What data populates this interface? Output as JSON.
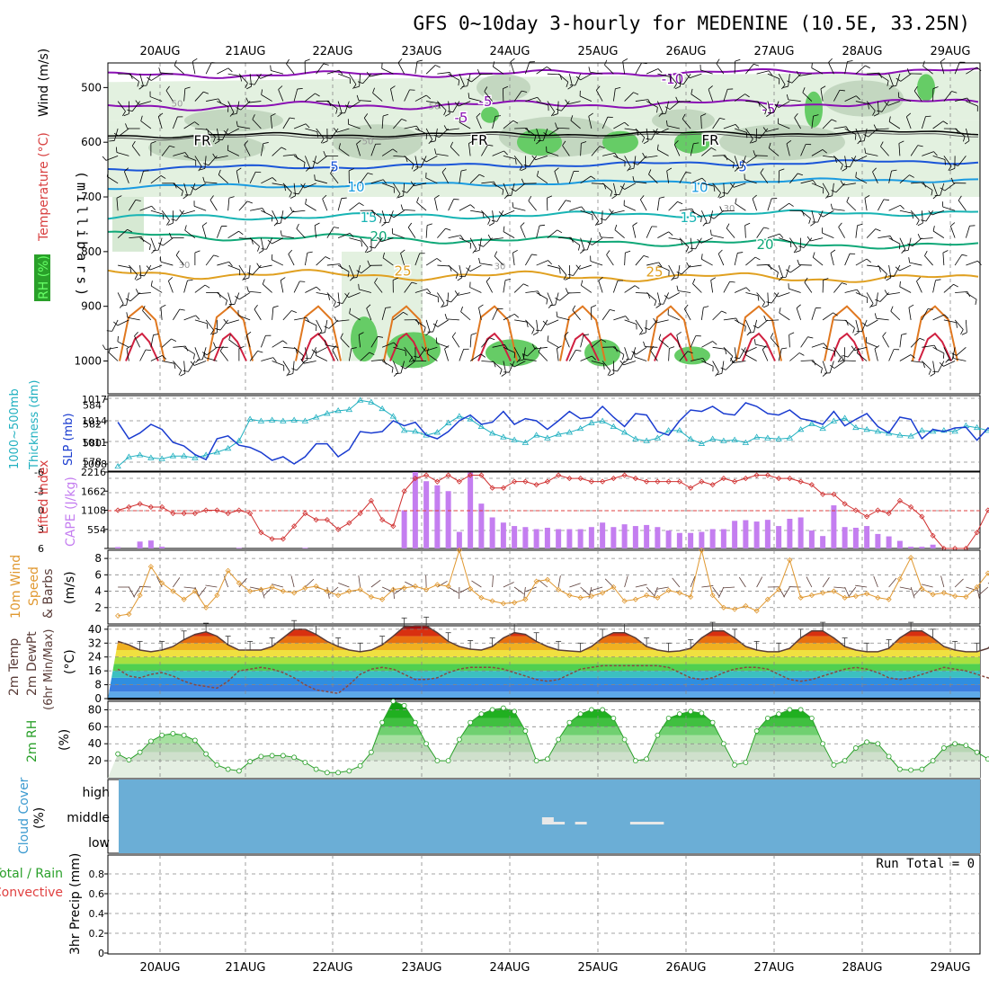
{
  "title": "GFS 0~10day 3-hourly for MEDENINE (10.5E, 33.25N)",
  "date_labels": [
    "20AUG",
    "21AUG",
    "22AUG",
    "23AUG",
    "24AUG",
    "25AUG",
    "26AUG",
    "27AUG",
    "28AUG",
    "29AUG"
  ],
  "panels": {
    "upper": {
      "ylabel": "(millibars)",
      "ylabel_wind": "Wind (m/s)",
      "ylabel_temp": "Temperature (°C)",
      "ylabel_rh": "RH (%)",
      "yticks": [
        "500",
        "600",
        "700",
        "800",
        "900",
        "1000"
      ],
      "isotherm_labels": [
        {
          "text": "-10",
          "color": "#8a10b4"
        },
        {
          "text": "-5",
          "color": "#8a10b4"
        },
        {
          "text": "-5",
          "color": "#8a10b4"
        },
        {
          "text": "-5",
          "color": "#8a10b4"
        },
        {
          "text": "FR",
          "color": "#000000"
        },
        {
          "text": "FR",
          "color": "#000000"
        },
        {
          "text": "FR",
          "color": "#000000"
        },
        {
          "text": "5",
          "color": "#1a55d8"
        },
        {
          "text": "5",
          "color": "#1a55d8"
        },
        {
          "text": "10",
          "color": "#1a9be0"
        },
        {
          "text": "10",
          "color": "#1a9be0"
        },
        {
          "text": "15",
          "color": "#18b4b4"
        },
        {
          "text": "15",
          "color": "#18b4b4"
        },
        {
          "text": "20",
          "color": "#10a878"
        },
        {
          "text": "20",
          "color": "#10a878"
        },
        {
          "text": "25",
          "color": "#e0a020"
        },
        {
          "text": "25",
          "color": "#e0a020"
        }
      ],
      "rh_labels": [
        "50",
        "50",
        "50",
        "30",
        "30",
        "30"
      ]
    },
    "slp": {
      "ylabel_left": "Thickness (dm)",
      "ylabel_left2": "1000~500mb",
      "ylabel_right": "SLP (mb)",
      "yticks_left": [
        "584",
        "582",
        "580",
        "578"
      ],
      "yticks_right": [
        "1017",
        "1014",
        "1011",
        "1008"
      ]
    },
    "cape": {
      "ylabel_left": "Lifted Index",
      "ylabel_right": "CAPE (J/kg)",
      "yticks_left": [
        "-6",
        "-3",
        "0",
        "3",
        "6"
      ],
      "yticks_right": [
        "2216",
        "1662",
        "1108",
        "554"
      ]
    },
    "wind10m": {
      "ylabel1": "10m Wind",
      "ylabel2": "Speed",
      "ylabel3": "& Barbs",
      "ylabel_unit": "(m/s)",
      "yticks": [
        "8",
        "6",
        "4",
        "2"
      ]
    },
    "temp2m": {
      "ylabel1": "2m Temp",
      "ylabel2": "2m DewPt",
      "ylabel3": "(6hr Min/Max)",
      "ylabel_unit": "(°C)",
      "yticks": [
        "40",
        "32",
        "24",
        "16",
        "8",
        "0"
      ]
    },
    "rh2m": {
      "ylabel1": "2m RH",
      "ylabel_unit": "(%)",
      "yticks": [
        "80",
        "60",
        "40",
        "20"
      ]
    },
    "cloud": {
      "ylabel1": "Cloud Cover",
      "ylabel_unit": "(%)",
      "levels": [
        "high",
        "middle",
        "low"
      ]
    },
    "precip": {
      "ylabel1": "3hr Precip (mm)",
      "ylabel2": "Total / Rain",
      "ylabel3": "Convective",
      "yticks": [
        "0.8",
        "0.6",
        "0.4",
        "0.2",
        "0"
      ],
      "run_total": "Run Total = 0"
    }
  },
  "colors": {
    "slp": "#1a3cd0",
    "thickness": "#20b0c0",
    "cape": "#c47ef0",
    "lifted": "#d03030",
    "wind": "#e09830",
    "temp": "#5a3c38",
    "dewpt": "#8a4a40",
    "rh": "#2aa02a",
    "cloud": "#6baed6"
  },
  "chart_data": [
    {
      "type": "line",
      "title": "Sea Level Pressure & 1000~500mb Thickness",
      "x_range": [
        "19 AUG 12Z",
        "29 AUG 06Z"
      ],
      "x_step_hours": 3,
      "series": [
        {
          "name": "SLP (mb)",
          "axis": "right",
          "values": [
            1013.8,
            1011.5,
            1012.3,
            1013.5,
            1012.8,
            1011,
            1010.5,
            1009.3,
            1008.6,
            1011.5,
            1011.9,
            1010.6,
            1010.3,
            1009.6,
            1008.5,
            1009,
            1008,
            1009,
            1010.8,
            1010.8,
            1009,
            1010,
            1012.5,
            1012.3,
            1012.5,
            1014,
            1013.3,
            1013.8,
            1012,
            1011.5,
            1012.5,
            1014,
            1014.8,
            1013.5,
            1013.8,
            1015.3,
            1013.5,
            1014.3,
            1014,
            1012.8,
            1014,
            1015.3,
            1014.3,
            1014.5,
            1016,
            1014.5,
            1013.2,
            1015,
            1014.8,
            1012.5,
            1012,
            1014,
            1015.5,
            1015.3,
            1016,
            1015,
            1014.8,
            1016.5,
            1016,
            1015,
            1014.8,
            1015.5,
            1014.3,
            1014,
            1013.5,
            1015.3,
            1013.3,
            1014.2,
            1015,
            1013.2,
            1012.3,
            1014.5,
            1014.2,
            1011.5,
            1012.8,
            1012.5,
            1013,
            1013.1,
            1011.3,
            1013,
            1012.5,
            1010.5,
            1011,
            1012.8,
            1013.5,
            1012.3,
            1013.3
          ]
        },
        {
          "name": "Thickness (dm)",
          "axis": "left",
          "values": [
            577.5,
            578.5,
            578.7,
            578.4,
            578.3,
            578.6,
            578.6,
            578.4,
            578.7,
            579,
            579.4,
            580.2,
            582.5,
            582.3,
            582.4,
            582.3,
            582.4,
            582.3,
            582.7,
            583.1,
            583.4,
            583.5,
            584.5,
            584.3,
            583.6,
            582.8,
            581.3,
            581.2,
            580.8,
            581.1,
            582.1,
            582.8,
            582.5,
            581.7,
            581,
            580.6,
            580.3,
            580,
            580.8,
            580.5,
            580.9,
            581.1,
            581.5,
            582.1,
            582.3,
            581.7,
            581.1,
            580.4,
            580.2,
            580.5,
            581.3,
            581.3,
            580.4,
            579.9,
            580.4,
            580.2,
            580.3,
            580,
            580.6,
            580.5,
            580.4,
            580.5,
            581.4,
            582,
            581.5,
            582.3,
            582.6,
            581.6,
            581.4,
            581.2,
            581,
            580.8,
            580.7,
            581.3,
            581.2,
            581.3,
            581.2,
            581.8,
            581.6,
            581.3,
            581.4,
            582.4,
            582.1,
            581.5,
            581.3,
            581.4,
            581.3
          ]
        }
      ],
      "ylim_left": [
        577,
        585
      ],
      "ylim_right": [
        1007,
        1017.5
      ]
    },
    {
      "type": "bar",
      "title": "CAPE & Lifted Index",
      "x_step_hours": 3,
      "series": [
        {
          "name": "CAPE (J/kg)",
          "axis": "right",
          "values": [
            40,
            0,
            200,
            230,
            50,
            0,
            0,
            0,
            0,
            0,
            0,
            20,
            0,
            0,
            0,
            0,
            0,
            20,
            0,
            0,
            0,
            0,
            0,
            0,
            0,
            0,
            1108,
            2216,
            1950,
            1830,
            1662,
            480,
            2200,
            1300,
            900,
            750,
            650,
            620,
            560,
            600,
            560,
            560,
            560,
            620,
            750,
            620,
            700,
            650,
            680,
            620,
            520,
            450,
            450,
            480,
            560,
            560,
            800,
            820,
            780,
            830,
            650,
            860,
            900,
            520,
            360,
            1250,
            620,
            600,
            650,
            420,
            350,
            220,
            50,
            50,
            110,
            0,
            0,
            0,
            0,
            0,
            0,
            0,
            0,
            0,
            0,
            0,
            0
          ]
        },
        {
          "name": "Lifted Index",
          "axis": "left",
          "values": [
            0,
            -0.5,
            -1,
            -0.5,
            -0.5,
            0.5,
            0.5,
            0.5,
            0,
            0,
            0.5,
            0,
            0.5,
            3.5,
            4.5,
            4.5,
            2.5,
            0.5,
            1.5,
            1.5,
            3,
            2,
            0.5,
            -1.5,
            1.5,
            2.5,
            -3,
            -5,
            -5.5,
            -4.5,
            -5.5,
            -4.5,
            -5.5,
            -5.5,
            -3.5,
            -3.5,
            -4.5,
            -4.5,
            -4,
            -4.5,
            -5.5,
            -5,
            -5,
            -4.5,
            -4.5,
            -5,
            -5.5,
            -5,
            -4.5,
            -4.5,
            -4.5,
            -4.5,
            -3.5,
            -4.5,
            -4,
            -5,
            -4.5,
            -5,
            -5.5,
            -5.5,
            -5,
            -5,
            -4.5,
            -4,
            -2.5,
            -2.5,
            -1,
            0,
            1,
            0,
            0.5,
            -1.5,
            -0.5,
            1,
            4,
            6,
            6,
            6,
            3.5,
            0,
            0,
            1.5,
            3,
            1.5,
            0.5,
            -0.5,
            -1
          ]
        }
      ],
      "ylim_left": [
        6,
        -6
      ],
      "ylim_right": [
        0,
        2216
      ]
    },
    {
      "type": "line",
      "title": "10m Wind Speed",
      "ylabel": "(m/s)",
      "values": [
        1,
        1.2,
        3.5,
        7,
        5,
        4,
        3,
        4,
        2,
        3.5,
        6.5,
        5,
        4,
        4.2,
        4.5,
        4,
        3.8,
        4.4,
        4.6,
        4,
        3.5,
        4,
        4.2,
        3.3,
        3,
        4.2,
        4.4,
        4.6,
        4.2,
        4.8,
        4.6,
        9,
        4.3,
        3.2,
        2.8,
        2.5,
        2.6,
        3,
        5.2,
        5.4,
        4.2,
        3.5,
        3.2,
        3.4,
        3.8,
        4.5,
        2.8,
        3,
        3.5,
        3.2,
        4.1,
        3.8,
        3.3,
        9,
        3.5,
        2,
        1.8,
        2.2,
        1.6,
        3,
        4.2,
        7.8,
        3.2,
        3.5,
        3.8,
        4,
        3.2,
        3.4,
        3.7,
        3.2,
        3,
        5.5,
        8.1,
        4.3,
        3.6,
        3.8,
        3.4,
        3.3,
        4.5,
        6.2,
        3.8,
        3.6,
        3.6,
        3.4,
        3.3,
        8.6,
        3.5
      ],
      "ylim": [
        0,
        9
      ]
    },
    {
      "type": "area",
      "title": "2m Temp & 2m DewPt",
      "ylabel": "(°C)",
      "series": [
        {
          "name": "2m Temp",
          "values": [
            33,
            31,
            28,
            27,
            28,
            30,
            34,
            37,
            38.5,
            36,
            31,
            28,
            28,
            28,
            30,
            35,
            40,
            40,
            37,
            33,
            30,
            28,
            27,
            28,
            31,
            36,
            41.5,
            42,
            42,
            38,
            33,
            30,
            28.5,
            28,
            30,
            35,
            38,
            37,
            33,
            30,
            28,
            27.5,
            27,
            30,
            35,
            38,
            38,
            35,
            30,
            28,
            27,
            27.5,
            29,
            35,
            39,
            39,
            35,
            30,
            28,
            27,
            27,
            29,
            35,
            39,
            39,
            35,
            30,
            28,
            27,
            27,
            29,
            35,
            39,
            39,
            35,
            30,
            28,
            27,
            27,
            29,
            35,
            39,
            39,
            35,
            30,
            28,
            27
          ]
        },
        {
          "name": "2m DewPt",
          "values": [
            17,
            13,
            12,
            14,
            15,
            13,
            10,
            8,
            7,
            6,
            10,
            16,
            17,
            18,
            17,
            15,
            12,
            8,
            5,
            4,
            3,
            8,
            14,
            17,
            18,
            17,
            14,
            11,
            11,
            12,
            15,
            17,
            18,
            18,
            18,
            17,
            15,
            13,
            11,
            10,
            11,
            14,
            17,
            18,
            19,
            19,
            19,
            19,
            19,
            19,
            18,
            15,
            12,
            11,
            12,
            15,
            17,
            18,
            18,
            17,
            14,
            11,
            10,
            11,
            13,
            15,
            17,
            18,
            17,
            15,
            12,
            11,
            12,
            14,
            16,
            18,
            17,
            16,
            14,
            12,
            11,
            12,
            14,
            16,
            17,
            18,
            17
          ]
        }
      ],
      "ylim": [
        0,
        42
      ]
    },
    {
      "type": "area",
      "title": "2m RH",
      "ylabel": "(%)",
      "values": [
        28,
        21,
        30,
        43,
        50,
        52,
        50,
        44,
        28,
        15,
        10,
        8,
        19,
        25,
        26,
        26,
        24,
        18,
        10,
        6,
        6,
        8,
        14,
        30,
        65,
        90,
        85,
        65,
        40,
        20,
        20,
        45,
        65,
        75,
        80,
        82,
        78,
        55,
        20,
        22,
        45,
        65,
        75,
        80,
        80,
        70,
        45,
        20,
        22,
        50,
        70,
        75,
        78,
        76,
        65,
        40,
        15,
        18,
        55,
        70,
        75,
        80,
        80,
        70,
        40,
        15,
        20,
        35,
        42,
        40,
        25,
        10,
        9,
        10,
        20,
        35,
        40,
        38,
        30,
        22,
        12,
        10,
        15,
        35,
        50,
        52,
        48,
        35
      ],
      "ylim": [
        0,
        90
      ]
    },
    {
      "type": "bar",
      "title": "Cloud Cover",
      "series": [
        {
          "name": "middle",
          "values": [
            0,
            0,
            0,
            0,
            0,
            0,
            0,
            0,
            0,
            0,
            0,
            0,
            0,
            0,
            0,
            0,
            0,
            0,
            0,
            0,
            0,
            0,
            0,
            0,
            0,
            0,
            0,
            0,
            0,
            0,
            0,
            0,
            0,
            0,
            0,
            0,
            0,
            0,
            0,
            60,
            30,
            0,
            30,
            0,
            0,
            0,
            0,
            30,
            30,
            30,
            0,
            0,
            0,
            0,
            0,
            0,
            0,
            0,
            0,
            0,
            0,
            0,
            0,
            0,
            0,
            0,
            0,
            0,
            0,
            0,
            0,
            0,
            0,
            0,
            0,
            0,
            0,
            0,
            0,
            0,
            0,
            0,
            0,
            0,
            0,
            0,
            0
          ]
        }
      ]
    },
    {
      "type": "bar",
      "title": "3hr Precip",
      "ylabel": "3hr Precip (mm)",
      "values": [],
      "ylim": [
        0,
        1
      ]
    }
  ]
}
